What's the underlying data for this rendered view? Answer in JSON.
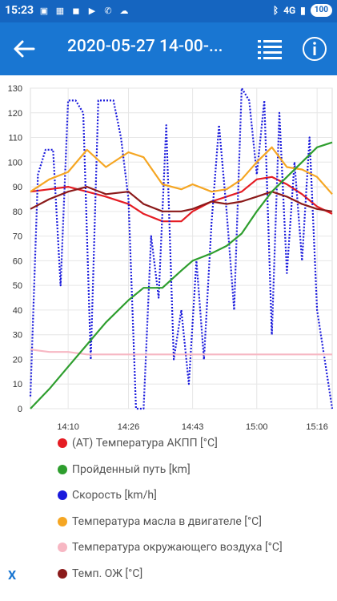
{
  "status": {
    "time": "15:23",
    "network": "4G",
    "battery": "100"
  },
  "header": {
    "title": "2020-05-27 14-00-..."
  },
  "chart_data": {
    "type": "line",
    "x_tick_labels": [
      "14:10",
      "14:26",
      "14:43",
      "15:00",
      "15:16"
    ],
    "y_ticks": [
      0,
      10,
      20,
      30,
      40,
      50,
      60,
      70,
      80,
      90,
      100,
      110,
      120,
      130
    ],
    "ylim": [
      0,
      130
    ],
    "xlim": [
      "14:00",
      "15:20"
    ],
    "grid": true,
    "legend_position": "bottom",
    "series": [
      {
        "name": "(AT) Температура АКПП [°C]",
        "color": "#e51c23",
        "x": [
          "14:00",
          "14:05",
          "14:10",
          "14:15",
          "14:20",
          "14:26",
          "14:30",
          "14:35",
          "14:40",
          "14:43",
          "14:48",
          "14:52",
          "14:56",
          "15:00",
          "15:04",
          "15:08",
          "15:12",
          "15:16",
          "15:20"
        ],
        "values": [
          88,
          89,
          90,
          88,
          86,
          83,
          79,
          76,
          76,
          80,
          84,
          86,
          88,
          93,
          94,
          91,
          87,
          82,
          79
        ]
      },
      {
        "name": "Пройденный путь [km]",
        "color": "#2e9e2e",
        "x": [
          "14:00",
          "14:05",
          "14:10",
          "14:15",
          "14:20",
          "14:26",
          "14:30",
          "14:35",
          "14:40",
          "14:43",
          "14:48",
          "14:52",
          "14:56",
          "15:00",
          "15:04",
          "15:08",
          "15:12",
          "15:16",
          "15:20"
        ],
        "values": [
          0,
          8,
          17,
          26,
          35,
          44,
          49,
          49,
          56,
          60,
          63,
          66,
          71,
          80,
          88,
          94,
          100,
          106,
          108
        ]
      },
      {
        "name": "Скорость [km/h]",
        "color": "#1a1adc",
        "x": [
          "14:00",
          "14:02",
          "14:04",
          "14:06",
          "14:08",
          "14:10",
          "14:12",
          "14:14",
          "14:16",
          "14:18",
          "14:20",
          "14:22",
          "14:24",
          "14:26",
          "14:28",
          "14:30",
          "14:32",
          "14:34",
          "14:36",
          "14:38",
          "14:40",
          "14:42",
          "14:44",
          "14:46",
          "14:48",
          "14:50",
          "14:52",
          "14:54",
          "14:56",
          "14:58",
          "15:00",
          "15:02",
          "15:04",
          "15:06",
          "15:08",
          "15:10",
          "15:12",
          "15:14",
          "15:16",
          "15:18",
          "15:20"
        ],
        "values": [
          5,
          95,
          105,
          105,
          50,
          125,
          125,
          120,
          20,
          125,
          125,
          125,
          110,
          85,
          0,
          0,
          70,
          45,
          115,
          20,
          40,
          10,
          60,
          20,
          75,
          115,
          80,
          40,
          130,
          125,
          95,
          125,
          30,
          120,
          55,
          100,
          60,
          110,
          40,
          20,
          0
        ]
      },
      {
        "name": "Температура масла в двигателе [°C]",
        "color": "#f5a623",
        "x": [
          "14:00",
          "14:05",
          "14:10",
          "14:15",
          "14:20",
          "14:26",
          "14:30",
          "14:35",
          "14:40",
          "14:43",
          "14:48",
          "14:52",
          "14:56",
          "15:00",
          "15:04",
          "15:08",
          "15:12",
          "15:16",
          "15:20"
        ],
        "values": [
          88,
          93,
          96,
          105,
          98,
          104,
          102,
          91,
          89,
          91,
          88,
          89,
          93,
          100,
          106,
          98,
          97,
          94,
          87
        ]
      },
      {
        "name": "Температура окружающего воздуха [°C]",
        "color": "#f7b7c3",
        "x": [
          "14:00",
          "14:05",
          "14:10",
          "14:15",
          "14:20",
          "14:26",
          "14:30",
          "14:35",
          "14:40",
          "14:43",
          "14:48",
          "14:52",
          "14:56",
          "15:00",
          "15:04",
          "15:08",
          "15:12",
          "15:16",
          "15:20"
        ],
        "values": [
          24,
          23,
          23,
          22,
          22,
          22,
          22,
          22,
          22,
          22,
          22,
          22,
          22,
          22,
          22,
          22,
          22,
          22,
          22
        ]
      },
      {
        "name": "Темп. ОЖ [°C]",
        "color": "#8b1a1a",
        "x": [
          "14:00",
          "14:05",
          "14:10",
          "14:15",
          "14:20",
          "14:26",
          "14:30",
          "14:35",
          "14:40",
          "14:43",
          "14:48",
          "14:52",
          "14:56",
          "15:00",
          "15:04",
          "15:08",
          "15:12",
          "15:16",
          "15:20"
        ],
        "values": [
          81,
          85,
          88,
          90,
          87,
          88,
          83,
          80,
          80,
          81,
          84,
          83,
          84,
          86,
          88,
          86,
          83,
          81,
          80
        ]
      }
    ]
  },
  "close_label": "X"
}
